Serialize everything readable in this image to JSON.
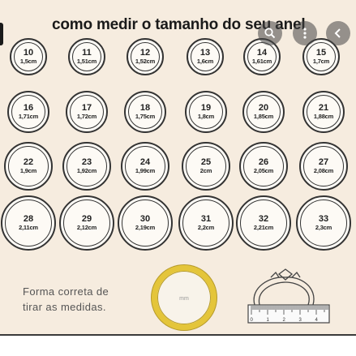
{
  "title": "como medir o tamanho do seu anel",
  "rings": [
    {
      "size": "10",
      "cm": "1,5cm"
    },
    {
      "size": "11",
      "cm": "1,51cm"
    },
    {
      "size": "12",
      "cm": "1,52cm"
    },
    {
      "size": "13",
      "cm": "1,6cm"
    },
    {
      "size": "14",
      "cm": "1,61cm"
    },
    {
      "size": "15",
      "cm": "1,7cm"
    },
    {
      "size": "16",
      "cm": "1,71cm"
    },
    {
      "size": "17",
      "cm": "1,72cm"
    },
    {
      "size": "18",
      "cm": "1,75cm"
    },
    {
      "size": "19",
      "cm": "1,8cm"
    },
    {
      "size": "20",
      "cm": "1,85cm"
    },
    {
      "size": "21",
      "cm": "1,88cm"
    },
    {
      "size": "22",
      "cm": "1,9cm"
    },
    {
      "size": "23",
      "cm": "1,92cm"
    },
    {
      "size": "24",
      "cm": "1,99cm"
    },
    {
      "size": "25",
      "cm": "2cm"
    },
    {
      "size": "26",
      "cm": "2,05cm"
    },
    {
      "size": "27",
      "cm": "2,08cm"
    },
    {
      "size": "28",
      "cm": "2,11cm"
    },
    {
      "size": "29",
      "cm": "2,12cm"
    },
    {
      "size": "30",
      "cm": "2,19cm"
    },
    {
      "size": "31",
      "cm": "2,2cm"
    },
    {
      "size": "32",
      "cm": "2,21cm"
    },
    {
      "size": "33",
      "cm": "2,3cm"
    }
  ],
  "caption": {
    "line1": "Forma correta de",
    "line2": "tirar as medidas."
  },
  "gold_ring_label": "mm",
  "ruler_ticks": [
    "0",
    "1",
    "2",
    "3",
    "4"
  ],
  "overlay_buttons": [
    {
      "icon": "search-icon"
    },
    {
      "icon": "more-options-icon"
    },
    {
      "icon": "back-arrow-icon"
    }
  ],
  "colors": {
    "background": "#f6ecdf",
    "ring_stroke": "#333333",
    "gold": "#e4c53a"
  }
}
